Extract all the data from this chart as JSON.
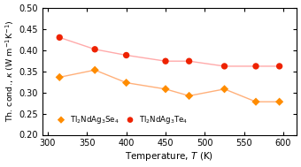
{
  "Se4_T": [
    315,
    360,
    400,
    450,
    480,
    525,
    565,
    595
  ],
  "Se4_k": [
    0.336,
    0.353,
    0.323,
    0.308,
    0.292,
    0.308,
    0.278,
    0.278
  ],
  "Te4_T": [
    315,
    360,
    400,
    450,
    480,
    525,
    565,
    595
  ],
  "Te4_k": [
    0.43,
    0.402,
    0.388,
    0.374,
    0.374,
    0.362,
    0.362,
    0.362
  ],
  "Se4_color": "#FF8C00",
  "Te4_color": "#EE2200",
  "Se4_line_color": "#FFB07A",
  "Te4_line_color": "#FFAAAA",
  "xlabel": "Temperature, $\\mathit{T}$ (K)",
  "ylabel": "Th. cond., $\\kappa$ (W m$^{-1}$K$^{-1}$)",
  "xlim": [
    293,
    617
  ],
  "ylim": [
    0.2,
    0.5
  ],
  "xticks": [
    300,
    350,
    400,
    450,
    500,
    550,
    600
  ],
  "yticks": [
    0.2,
    0.25,
    0.3,
    0.35,
    0.4,
    0.45,
    0.5
  ],
  "legend_Se4": "Tl$_2$NdAg$_3$Se$_4$",
  "legend_Te4": "Tl$_2$NdAg$_3$Te$_4$",
  "figsize": [
    3.4,
    1.89
  ],
  "dpi": 100
}
